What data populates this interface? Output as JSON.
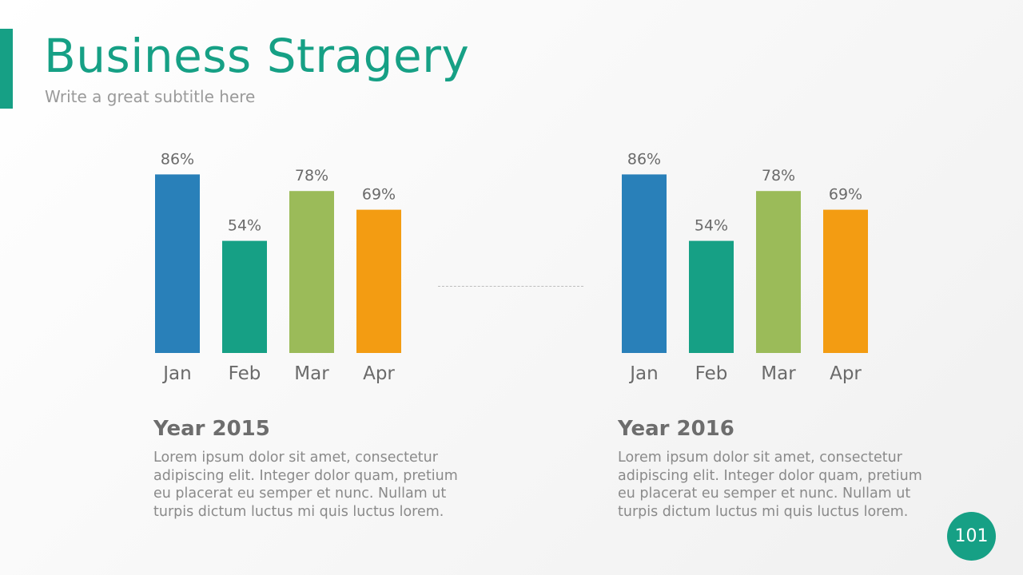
{
  "slide": {
    "title": "Business Stragery",
    "subtitle": "Write a great subtitle here",
    "page_number": "101",
    "accent_color": "#16a085"
  },
  "blocks": [
    {
      "heading": "Year 2015",
      "body": "Lorem ipsum dolor sit amet, consectetur adipiscing elit. Integer dolor quam, pretium eu placerat eu semper et nunc. Nullam ut turpis dictum luctus mi quis luctus lorem."
    },
    {
      "heading": "Year 2016",
      "body": "Lorem ipsum dolor sit amet, consectetur adipiscing elit. Integer dolor quam, pretium eu placerat eu semper et nunc. Nullam ut turpis dictum luctus mi quis luctus lorem."
    }
  ],
  "chart_data": [
    {
      "type": "bar",
      "title": "",
      "xlabel": "",
      "ylabel": "",
      "categories": [
        "Jan",
        "Feb",
        "Mar",
        "Apr"
      ],
      "values": [
        86,
        54,
        78,
        69
      ],
      "data_labels": [
        "86%",
        "54%",
        "78%",
        "69%"
      ],
      "colors": [
        "#2980b9",
        "#16a085",
        "#9bbb59",
        "#f39c12"
      ],
      "ylim": [
        0,
        100
      ],
      "grid": false,
      "legend": "none"
    },
    {
      "type": "bar",
      "title": "",
      "xlabel": "",
      "ylabel": "",
      "categories": [
        "Jan",
        "Feb",
        "Mar",
        "Apr"
      ],
      "values": [
        86,
        54,
        78,
        69
      ],
      "data_labels": [
        "86%",
        "54%",
        "78%",
        "69%"
      ],
      "colors": [
        "#2980b9",
        "#16a085",
        "#9bbb59",
        "#f39c12"
      ],
      "ylim": [
        0,
        100
      ],
      "grid": false,
      "legend": "none"
    }
  ]
}
